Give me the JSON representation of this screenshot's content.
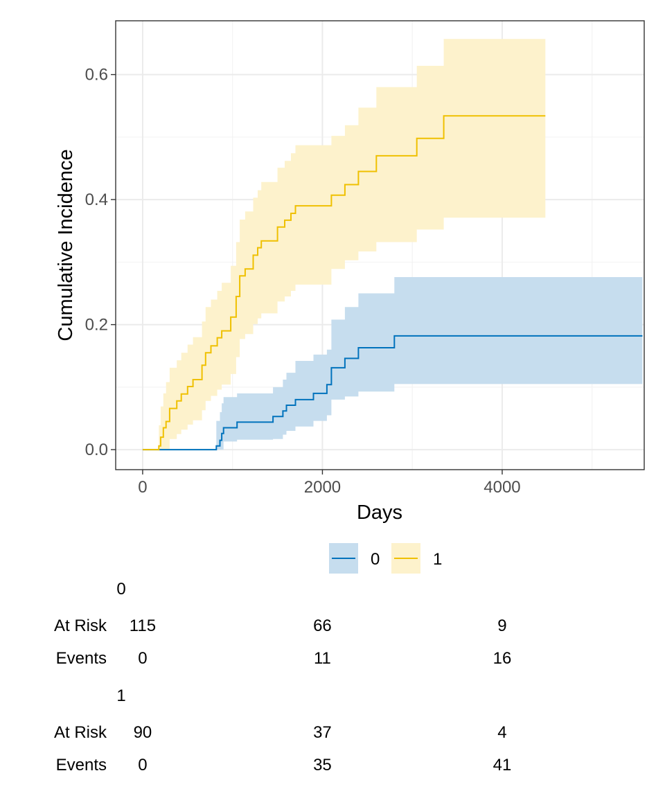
{
  "chart_data": {
    "type": "step",
    "xlabel": "Days",
    "ylabel": "Cumulative Incidence",
    "xlim": [
      -300,
      5580
    ],
    "ylim": [
      -0.032,
      0.686
    ],
    "x_ticks": [
      0,
      2000,
      4000
    ],
    "x_minor": [
      1000,
      3000,
      5000
    ],
    "y_ticks": [
      0.0,
      0.2,
      0.4,
      0.6
    ],
    "y_minor": [
      0.1,
      0.3,
      0.5
    ],
    "grid": true,
    "legend_position": "bottom",
    "series": [
      {
        "name": "0",
        "color": "#0072BC",
        "fill": "#C6DDEE",
        "x": [
          0,
          820,
          860,
          880,
          900,
          1050,
          1450,
          1560,
          1600,
          1700,
          1900,
          2050,
          2100,
          2250,
          2400,
          2650,
          2800,
          5560
        ],
        "y": [
          0,
          0.006,
          0.015,
          0.026,
          0.035,
          0.044,
          0.053,
          0.062,
          0.071,
          0.08,
          0.09,
          0.104,
          0.131,
          0.146,
          0.163,
          0.163,
          0.182,
          0.182
        ],
        "lower": [
          0,
          0.0,
          0.0,
          0.0,
          0.013,
          0.016,
          0.017,
          0.024,
          0.03,
          0.037,
          0.046,
          0.055,
          0.08,
          0.085,
          0.093,
          0.093,
          0.105,
          0.105
        ],
        "upper": [
          0,
          0.046,
          0.06,
          0.074,
          0.084,
          0.09,
          0.1,
          0.112,
          0.123,
          0.142,
          0.152,
          0.16,
          0.208,
          0.228,
          0.25,
          0.25,
          0.276,
          0.276
        ]
      },
      {
        "name": "1",
        "color": "#EFC000",
        "fill": "#FDF2CC",
        "x": [
          0,
          180,
          200,
          230,
          260,
          300,
          380,
          430,
          500,
          560,
          660,
          700,
          760,
          830,
          880,
          980,
          1040,
          1080,
          1140,
          1230,
          1280,
          1320,
          1500,
          1580,
          1650,
          1700,
          2100,
          2250,
          2400,
          2600,
          3050,
          3350,
          4480
        ],
        "y": [
          0,
          0.006,
          0.02,
          0.035,
          0.045,
          0.066,
          0.078,
          0.089,
          0.101,
          0.112,
          0.135,
          0.155,
          0.166,
          0.179,
          0.19,
          0.212,
          0.245,
          0.278,
          0.289,
          0.311,
          0.323,
          0.334,
          0.356,
          0.367,
          0.378,
          0.39,
          0.407,
          0.424,
          0.445,
          0.47,
          0.498,
          0.534,
          0.534
        ],
        "lower": [
          0,
          0.0,
          0.0,
          0.0,
          0.0,
          0.017,
          0.025,
          0.032,
          0.04,
          0.047,
          0.063,
          0.078,
          0.086,
          0.096,
          0.104,
          0.121,
          0.148,
          0.177,
          0.185,
          0.201,
          0.21,
          0.218,
          0.237,
          0.245,
          0.254,
          0.264,
          0.289,
          0.303,
          0.317,
          0.332,
          0.352,
          0.371,
          0.392
        ],
        "upper": [
          0,
          0.039,
          0.069,
          0.09,
          0.108,
          0.131,
          0.143,
          0.155,
          0.168,
          0.18,
          0.205,
          0.228,
          0.24,
          0.254,
          0.267,
          0.294,
          0.332,
          0.368,
          0.381,
          0.403,
          0.415,
          0.428,
          0.451,
          0.462,
          0.474,
          0.487,
          0.502,
          0.519,
          0.547,
          0.58,
          0.614,
          0.657,
          0.657
        ]
      }
    ]
  },
  "legend": {
    "items": [
      {
        "label": "0",
        "color": "#0072BC",
        "fill": "#C6DDEE"
      },
      {
        "label": "1",
        "color": "#EFC000",
        "fill": "#FDF2CC"
      }
    ]
  },
  "risk_table": {
    "columns": [
      0,
      2000,
      4000
    ],
    "groups": [
      {
        "title": "0",
        "rows": [
          {
            "label": "At Risk",
            "values": [
              "115",
              "66",
              "9"
            ]
          },
          {
            "label": "Events",
            "values": [
              "0",
              "11",
              "16"
            ]
          }
        ]
      },
      {
        "title": "1",
        "rows": [
          {
            "label": "At Risk",
            "values": [
              "90",
              "37",
              "4"
            ]
          },
          {
            "label": "Events",
            "values": [
              "0",
              "35",
              "41"
            ]
          }
        ]
      }
    ]
  }
}
